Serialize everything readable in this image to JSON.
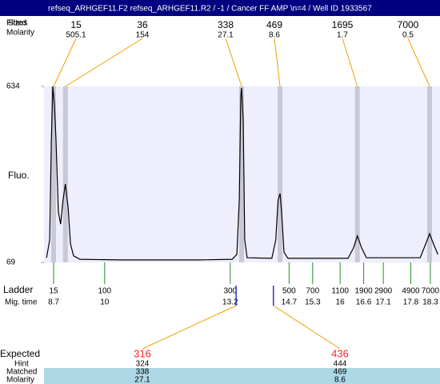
{
  "chart_data": {
    "type": "electropherogram",
    "title": "refseq_ARHGEF11.F2  refseq_ARHGEF11.R2 / -1 / Cancer FF AMP \\n=4 / Well ID 1933567",
    "row_labels": {
      "sizes": "Sizes",
      "fitted": "Fitted",
      "molarity": "Molarity"
    },
    "y_label": "Fluo.",
    "xlim": [
      8.455,
      18.545
    ],
    "ylim": [
      69,
      634
    ],
    "yticks": [
      69,
      634
    ],
    "colors": {
      "title_bar": "#000080",
      "plot": "#eeeefc",
      "trace": "#000000",
      "band": "#c8c8d6",
      "leader": "#f0a000",
      "ladder": "#2a8a2a",
      "expected": "#ff2020",
      "expected_marker": "#3030c0",
      "table_row": "#add8e6"
    },
    "peaks": {
      "sizes": [
        15,
        36,
        338,
        469,
        1695,
        7000
      ],
      "molarity": [
        505.1,
        154,
        27.1,
        8.6,
        1.7,
        0.5
      ],
      "times": [
        8.7,
        9.0,
        13.49,
        14.47,
        16.44,
        18.28
      ]
    },
    "trace": {
      "time": [
        8.52,
        8.6,
        8.64,
        8.68,
        8.72,
        8.76,
        8.82,
        8.88,
        8.94,
        9.0,
        9.07,
        9.13,
        9.21,
        9.37,
        10.39,
        12.43,
        13.25,
        13.37,
        13.43,
        13.47,
        13.49,
        13.53,
        13.57,
        13.63,
        14.26,
        14.36,
        14.42,
        14.47,
        14.51,
        14.57,
        14.67,
        16.2,
        16.34,
        16.44,
        16.55,
        16.67,
        18.04,
        18.18,
        18.28,
        18.38,
        18.49
      ],
      "fluo": [
        84,
        141,
        449,
        634,
        577,
        462,
        231,
        192,
        269,
        321,
        244,
        128,
        90,
        79,
        77,
        77,
        79,
        95,
        269,
        603,
        629,
        526,
        141,
        84,
        82,
        141,
        269,
        290,
        231,
        102,
        82,
        82,
        115,
        154,
        115,
        84,
        84,
        128,
        161,
        128,
        95
      ]
    },
    "ladder": {
      "label": "Ladder",
      "time_label": "Mig. time",
      "sizes": [
        15,
        100,
        300,
        500,
        700,
        1100,
        1900,
        2900,
        4900,
        7000
      ],
      "times": [
        8.7,
        10,
        13.2,
        14.7,
        15.3,
        16,
        16.6,
        17.1,
        17.8,
        18.3
      ]
    },
    "expected_table": {
      "labels": {
        "expected": "Expected",
        "hint": "Hint",
        "matched": "Matched",
        "molarity": "Molarity"
      },
      "expected": [
        316,
        436
      ],
      "hint": [
        324,
        444
      ],
      "matched": [
        338,
        469
      ],
      "molarity": [
        27.1,
        8.6
      ],
      "times": [
        13.35,
        14.3
      ]
    }
  }
}
